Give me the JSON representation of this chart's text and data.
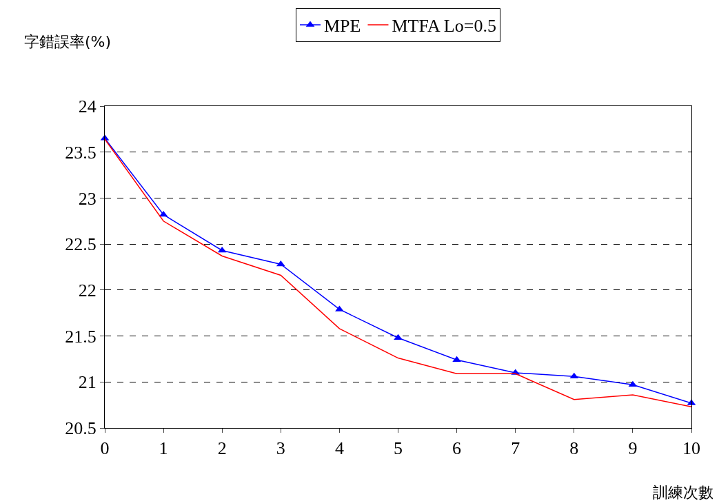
{
  "chart_data": {
    "type": "line",
    "ylabel": "字錯誤率(%)",
    "xlabel": "訓練次數",
    "x": [
      0,
      1,
      2,
      3,
      4,
      5,
      6,
      7,
      8,
      9,
      10
    ],
    "series": [
      {
        "name": "MPE",
        "color": "#0000ff",
        "marker": "triangle",
        "values": [
          23.65,
          22.82,
          22.43,
          22.28,
          21.79,
          21.48,
          21.24,
          21.1,
          21.06,
          20.97,
          20.77
        ]
      },
      {
        "name": "MTFA Lo=0.5",
        "color": "#ff0000",
        "marker": "none",
        "values": [
          23.64,
          22.75,
          22.37,
          22.16,
          21.58,
          21.26,
          21.09,
          21.09,
          20.81,
          20.86,
          20.73
        ]
      }
    ],
    "xlim": [
      0,
      10
    ],
    "xticks": [
      0,
      1,
      2,
      3,
      4,
      5,
      6,
      7,
      8,
      9,
      10
    ],
    "ylim": [
      20.5,
      24
    ],
    "yticks": [
      20.5,
      21,
      21.5,
      22,
      22.5,
      23,
      23.5,
      24
    ],
    "grid": "y",
    "legend": "top",
    "line_style": "solid"
  }
}
